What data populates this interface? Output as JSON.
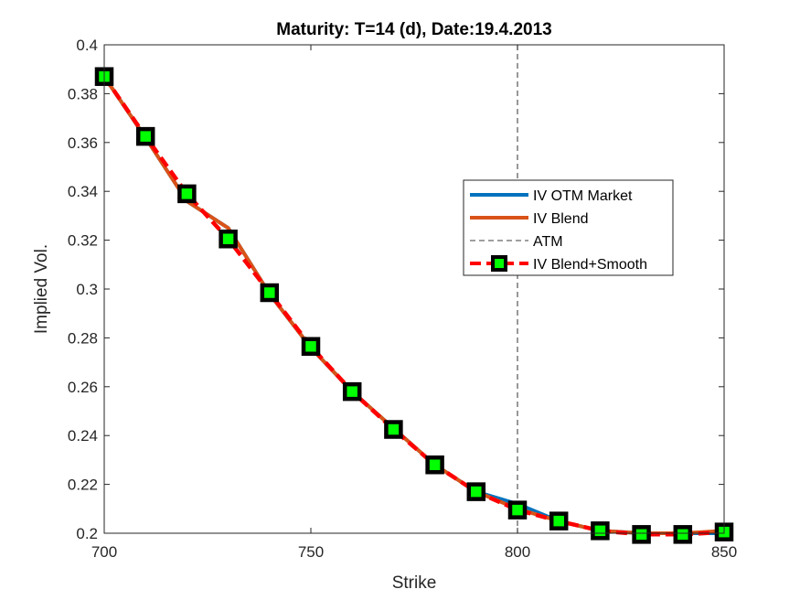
{
  "chart_data": {
    "type": "line",
    "title": "Maturity: T=14 (d), Date:19.4.2013",
    "xlabel": "Strike",
    "ylabel": "Implied Vol.",
    "xlim": [
      700,
      850
    ],
    "ylim": [
      0.2,
      0.4
    ],
    "xticks": [
      700,
      750,
      800,
      850
    ],
    "xtick_labels": [
      "700",
      "750",
      "800",
      "850"
    ],
    "yticks": [
      0.2,
      0.22,
      0.24,
      0.26,
      0.28,
      0.3,
      0.32,
      0.34,
      0.36,
      0.38,
      0.4
    ],
    "ytick_labels": [
      "0.2",
      "0.22",
      "0.24",
      "0.26",
      "0.28",
      "0.3",
      "0.32",
      "0.34",
      "0.36",
      "0.38",
      "0.4"
    ],
    "grid": false,
    "legend_position": "right-middle",
    "series": [
      {
        "name": "IV OTM Market",
        "color": "#0072BD",
        "style": "solid",
        "x": [
          700,
          710,
          720,
          730,
          740,
          750,
          760,
          770,
          780,
          790,
          800,
          810,
          820,
          830,
          840,
          850
        ],
        "y": [
          0.387,
          0.362,
          0.336,
          0.325,
          0.298,
          0.276,
          0.258,
          0.243,
          0.228,
          0.217,
          0.212,
          0.205,
          0.201,
          0.2,
          0.2,
          0.2
        ]
      },
      {
        "name": "IV Blend",
        "color": "#D95319",
        "style": "solid",
        "x": [
          700,
          710,
          720,
          730,
          740,
          750,
          760,
          770,
          780,
          790,
          800,
          810,
          820,
          830,
          840,
          850
        ],
        "y": [
          0.387,
          0.362,
          0.336,
          0.325,
          0.298,
          0.276,
          0.258,
          0.243,
          0.228,
          0.217,
          0.21,
          0.205,
          0.201,
          0.2,
          0.2,
          0.201
        ]
      },
      {
        "name": "ATM",
        "color": "#000000",
        "style": "dashed",
        "vertical_x": 800
      },
      {
        "name": "IV Blend+Smooth",
        "color": "#FF0000",
        "style": "dashed",
        "marker": "square",
        "marker_edge": "#000000",
        "marker_face": "#00FF00",
        "x": [
          700,
          710,
          720,
          730,
          740,
          750,
          760,
          770,
          780,
          790,
          800,
          810,
          820,
          830,
          840,
          850
        ],
        "y": [
          0.387,
          0.3625,
          0.339,
          0.3205,
          0.2985,
          0.2765,
          0.258,
          0.2425,
          0.228,
          0.217,
          0.2095,
          0.205,
          0.201,
          0.1995,
          0.1995,
          0.2005
        ]
      }
    ]
  }
}
